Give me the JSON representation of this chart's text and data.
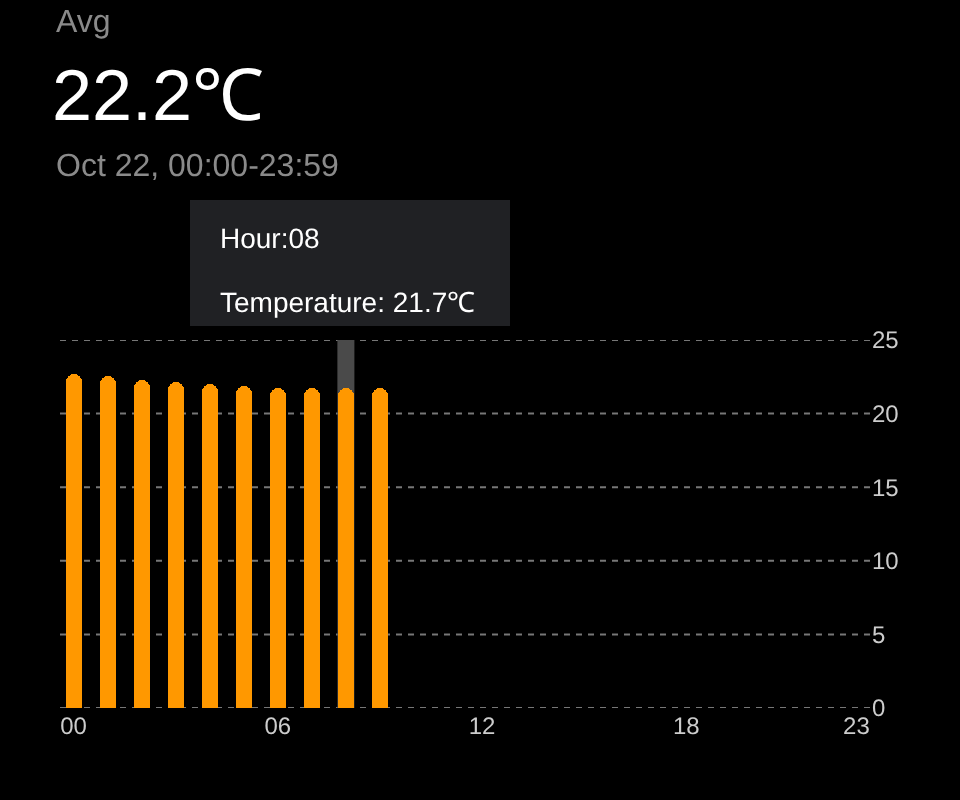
{
  "chart_data": {
    "type": "bar",
    "title": "Avg",
    "subtitle": "22.2℃",
    "annotations": [
      "Oct 22, 00:00-23:59",
      "Hour:08",
      "Temperature: 21.7℃"
    ],
    "x": [
      0,
      1,
      2,
      3,
      4,
      5,
      6,
      7,
      8,
      9
    ],
    "series": [
      {
        "color": "#ff9800",
        "values": [
          22.7,
          22.5,
          22.3,
          22.1,
          22.0,
          21.9,
          21.8,
          21.7,
          21.7,
          21.7
        ]
      }
    ],
    "xlim": [
      -0.4,
      23.4
    ],
    "xticks": [
      {
        "value": 0,
        "label": "00"
      },
      {
        "value": 6,
        "label": "06"
      },
      12,
      18,
      23
    ],
    "ylim": [
      0,
      25
    ],
    "yticks": [
      0,
      5,
      10,
      15,
      20,
      25
    ],
    "bands": [
      {
        "axis": "x",
        "from": 7.75,
        "to": 8.25,
        "color": "#4a4a4a"
      }
    ],
    "grid": "y"
  }
}
